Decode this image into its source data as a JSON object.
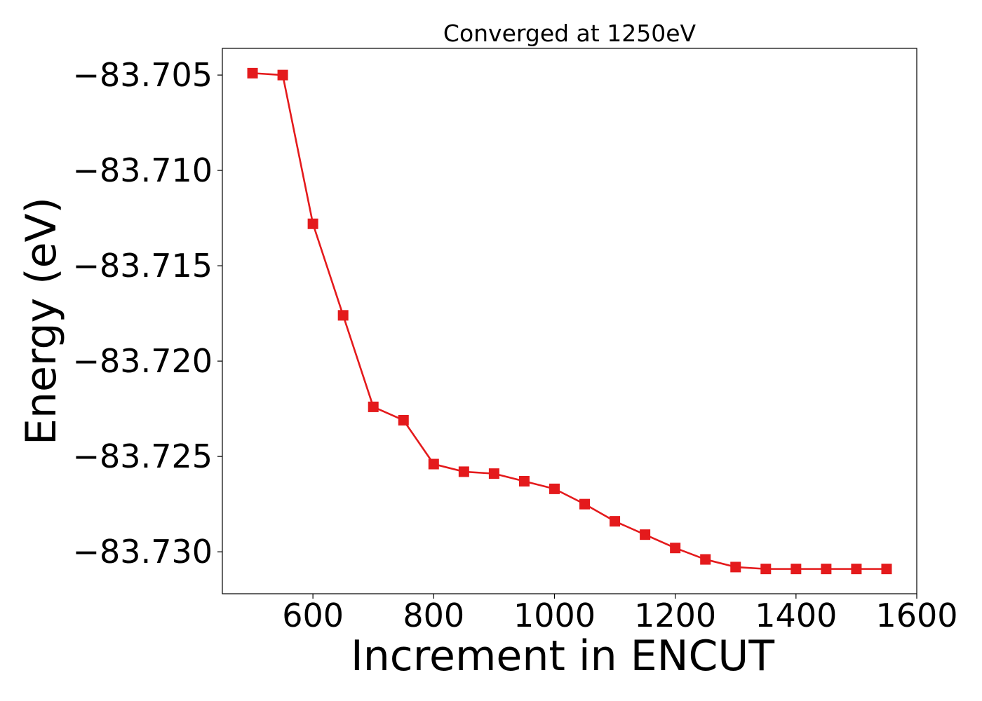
{
  "chart_data": {
    "type": "line",
    "title": "Converged at 1250eV",
    "xlabel": "Increment in ENCUT",
    "ylabel": "Energy (eV)",
    "x_ticks": [
      "600",
      "800",
      "1000",
      "1200",
      "1400",
      "1600"
    ],
    "y_ticks": [
      "−83.705",
      "−83.710",
      "−83.715",
      "−83.720",
      "−83.725",
      "−83.730"
    ],
    "x_tick_values": [
      600,
      800,
      1000,
      1200,
      1400,
      1600
    ],
    "y_tick_values": [
      -83.705,
      -83.71,
      -83.715,
      -83.72,
      -83.725,
      -83.73
    ],
    "xlim": [
      450,
      1600
    ],
    "ylim": [
      -83.7322,
      -83.7036
    ],
    "grid": false,
    "marker": "square",
    "color": "#e41a1c",
    "series": [
      {
        "x": [
          500,
          550,
          600,
          650,
          700,
          750,
          800,
          850,
          900,
          950,
          1000,
          1050,
          1100,
          1150,
          1200,
          1250,
          1300,
          1350,
          1400,
          1450,
          1500,
          1550
        ],
        "y": [
          -83.7049,
          -83.705,
          -83.7128,
          -83.7176,
          -83.7224,
          -83.7231,
          -83.7254,
          -83.7258,
          -83.7259,
          -83.7263,
          -83.7267,
          -83.7275,
          -83.7284,
          -83.7291,
          -83.7298,
          -83.7304,
          -83.7308,
          -83.7309,
          -83.7309,
          -83.7309,
          -83.7309,
          -83.7309
        ]
      }
    ]
  }
}
